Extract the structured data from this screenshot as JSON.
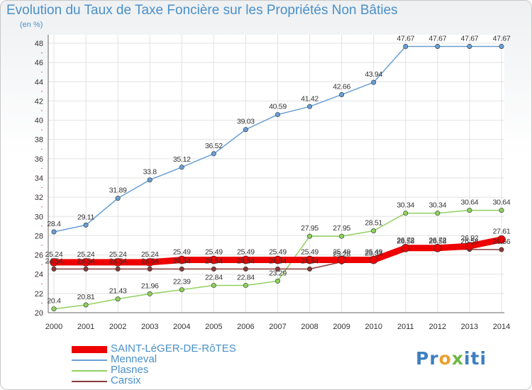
{
  "title": "Evolution du Taux de Taxe Foncière sur les Propriétés Non Bâties",
  "subtitle": "(en %)",
  "brand": {
    "p1": "Pr",
    "o": "o",
    "x": "x",
    "rest": "iti"
  },
  "chart_data": {
    "type": "line",
    "title": "Evolution du Taux de Taxe Foncière sur les Propriétés Non Bâties",
    "ylabel": "(en %)",
    "xlabel": "",
    "ylim": [
      20,
      48
    ],
    "yticks": [
      20,
      22,
      24,
      26,
      28,
      30,
      32,
      34,
      36,
      38,
      40,
      42,
      44,
      46,
      48
    ],
    "x": [
      "2000",
      "2001",
      "2002",
      "2003",
      "2004",
      "2005",
      "2006",
      "2007",
      "2008",
      "2009",
      "2010",
      "2011",
      "2012",
      "2013",
      "2014"
    ],
    "grid": true,
    "legend": "bottom-left",
    "series": [
      {
        "name": "Menneval",
        "color": "#6a9fd4",
        "values": [
          28.4,
          29.11,
          31.89,
          33.8,
          35.12,
          36.52,
          39.03,
          40.59,
          41.42,
          42.66,
          43.94,
          47.67,
          47.67,
          47.67,
          47.67
        ],
        "labels": [
          "28.4",
          "29.11",
          "31.89",
          "33.8",
          "35.12",
          "36.52",
          "39.03",
          "40.59",
          "41.42",
          "42.66",
          "43.94",
          "47.67",
          "47.67",
          "47.67",
          "47.67"
        ]
      },
      {
        "name": "Plasnes",
        "color": "#90d060",
        "values": [
          20.4,
          20.81,
          21.43,
          21.96,
          22.39,
          22.84,
          22.84,
          23.29,
          27.95,
          27.95,
          28.51,
          30.34,
          30.34,
          30.64,
          30.64
        ],
        "labels": [
          "20.4",
          "20.81",
          "21.43",
          "21.96",
          "22.39",
          "22.84",
          "22.84",
          "23.29",
          "27.95",
          "27.95",
          "28.51",
          "30.34",
          "30.34",
          "30.64",
          "30.64"
        ]
      },
      {
        "name": "Carsix",
        "color": "#8a3a3a",
        "values": [
          24.54,
          24.54,
          24.54,
          24.54,
          24.54,
          24.54,
          24.54,
          24.54,
          24.54,
          25.28,
          25.33,
          26.58,
          26.58,
          26.58,
          26.56
        ],
        "labels": [
          "24.54",
          "24.54",
          "24.54",
          "24.54",
          "24.54",
          "24.54",
          "24.54",
          "24.54",
          "24.54",
          "25.28",
          "25.33",
          "26.58",
          "26.58",
          "26.58",
          "26.56"
        ]
      },
      {
        "name": "SAINT-LéGER-DE-RôTES",
        "color": "#ee0000",
        "values": [
          25.24,
          25.24,
          25.24,
          25.24,
          25.49,
          25.49,
          25.49,
          25.49,
          25.49,
          25.49,
          25.49,
          26.72,
          26.72,
          26.92,
          27.61
        ],
        "labels": [
          "25.24",
          "25.24",
          "25.24",
          "25.24",
          "25.49",
          "25.49",
          "25.49",
          "25.49",
          "25.49",
          "25.49",
          "25.49",
          "26.72",
          "26.72",
          "26.92",
          "27.61"
        ]
      }
    ],
    "legend_order": [
      "SAINT-LéGER-DE-RôTES",
      "Menneval",
      "Plasnes",
      "Carsix"
    ]
  }
}
